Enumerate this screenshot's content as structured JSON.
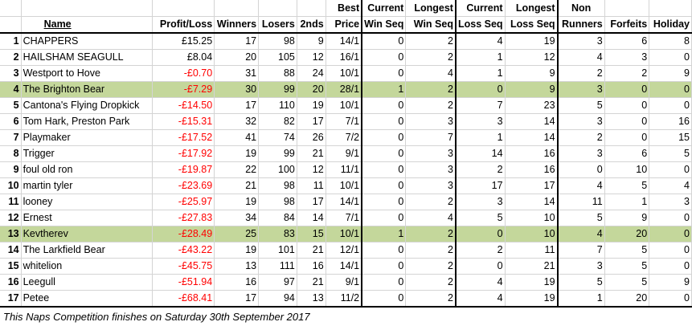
{
  "headers": {
    "name": "Name",
    "profit_loss": "Profit/Loss",
    "winners": "Winners",
    "losers": "Losers",
    "seconds": "2nds",
    "best_price": [
      "Best",
      "Price"
    ],
    "current_win_seq": [
      "Current",
      "Win Seq"
    ],
    "longest_win_seq": [
      "Longest",
      "Win Seq"
    ],
    "current_loss_seq": [
      "Current",
      "Loss Seq"
    ],
    "longest_loss_seq": [
      "Longest",
      "Loss Seq"
    ],
    "non_runners": [
      "Non",
      "Runners"
    ],
    "forfeits": "Forfeits",
    "holiday": "Holiday"
  },
  "rows": [
    {
      "pos": "1",
      "name": "CHAPPERS",
      "pl": "£15.25",
      "neg": false,
      "w": "17",
      "l": "98",
      "s": "9",
      "bp": "14/1",
      "cws": "0",
      "lws": "2",
      "cls": "4",
      "lls": "19",
      "nr": "3",
      "f": "6",
      "h": "8",
      "hl": false
    },
    {
      "pos": "2",
      "name": "HAILSHAM SEAGULL",
      "pl": "£8.04",
      "neg": false,
      "w": "20",
      "l": "105",
      "s": "12",
      "bp": "16/1",
      "cws": "0",
      "lws": "2",
      "cls": "1",
      "lls": "12",
      "nr": "4",
      "f": "3",
      "h": "0",
      "hl": false
    },
    {
      "pos": "3",
      "name": "Westport to Hove",
      "pl": "-£0.70",
      "neg": true,
      "w": "31",
      "l": "88",
      "s": "24",
      "bp": "10/1",
      "cws": "0",
      "lws": "4",
      "cls": "1",
      "lls": "9",
      "nr": "2",
      "f": "2",
      "h": "9",
      "hl": false
    },
    {
      "pos": "4",
      "name": "The Brighton Bear",
      "pl": "-£7.29",
      "neg": true,
      "w": "30",
      "l": "99",
      "s": "20",
      "bp": "28/1",
      "cws": "1",
      "lws": "2",
      "cls": "0",
      "lls": "9",
      "nr": "3",
      "f": "0",
      "h": "0",
      "hl": true
    },
    {
      "pos": "5",
      "name": "Cantona's Flying Dropkick",
      "pl": "-£14.50",
      "neg": true,
      "w": "17",
      "l": "110",
      "s": "19",
      "bp": "10/1",
      "cws": "0",
      "lws": "2",
      "cls": "7",
      "lls": "23",
      "nr": "5",
      "f": "0",
      "h": "0",
      "hl": false
    },
    {
      "pos": "6",
      "name": "Tom Hark, Preston Park",
      "pl": "-£15.31",
      "neg": true,
      "w": "32",
      "l": "82",
      "s": "17",
      "bp": "7/1",
      "cws": "0",
      "lws": "3",
      "cls": "3",
      "lls": "14",
      "nr": "3",
      "f": "0",
      "h": "16",
      "hl": false
    },
    {
      "pos": "7",
      "name": "Playmaker",
      "pl": "-£17.52",
      "neg": true,
      "w": "41",
      "l": "74",
      "s": "26",
      "bp": "7/2",
      "cws": "0",
      "lws": "7",
      "cls": "1",
      "lls": "14",
      "nr": "2",
      "f": "0",
      "h": "15",
      "hl": false
    },
    {
      "pos": "8",
      "name": "Trigger",
      "pl": "-£17.92",
      "neg": true,
      "w": "19",
      "l": "99",
      "s": "21",
      "bp": "9/1",
      "cws": "0",
      "lws": "3",
      "cls": "14",
      "lls": "16",
      "nr": "3",
      "f": "6",
      "h": "5",
      "hl": false
    },
    {
      "pos": "9",
      "name": "foul old ron",
      "pl": "-£19.87",
      "neg": true,
      "w": "22",
      "l": "100",
      "s": "12",
      "bp": "11/1",
      "cws": "0",
      "lws": "3",
      "cls": "2",
      "lls": "16",
      "nr": "0",
      "f": "10",
      "h": "0",
      "hl": false
    },
    {
      "pos": "10",
      "name": "martin tyler",
      "pl": "-£23.69",
      "neg": true,
      "w": "21",
      "l": "98",
      "s": "11",
      "bp": "10/1",
      "cws": "0",
      "lws": "3",
      "cls": "17",
      "lls": "17",
      "nr": "4",
      "f": "5",
      "h": "4",
      "hl": false
    },
    {
      "pos": "11",
      "name": "looney",
      "pl": "-£25.97",
      "neg": true,
      "w": "19",
      "l": "98",
      "s": "17",
      "bp": "14/1",
      "cws": "0",
      "lws": "2",
      "cls": "3",
      "lls": "14",
      "nr": "11",
      "f": "1",
      "h": "3",
      "hl": false
    },
    {
      "pos": "12",
      "name": "Ernest",
      "pl": "-£27.83",
      "neg": true,
      "w": "34",
      "l": "84",
      "s": "14",
      "bp": "7/1",
      "cws": "0",
      "lws": "4",
      "cls": "5",
      "lls": "10",
      "nr": "5",
      "f": "9",
      "h": "0",
      "hl": false
    },
    {
      "pos": "13",
      "name": "Kevtherev",
      "pl": "-£28.49",
      "neg": true,
      "w": "25",
      "l": "83",
      "s": "15",
      "bp": "10/1",
      "cws": "1",
      "lws": "2",
      "cls": "0",
      "lls": "10",
      "nr": "4",
      "f": "20",
      "h": "0",
      "hl": true
    },
    {
      "pos": "14",
      "name": "The Larkfield Bear",
      "pl": "-£43.22",
      "neg": true,
      "w": "19",
      "l": "101",
      "s": "21",
      "bp": "12/1",
      "cws": "0",
      "lws": "2",
      "cls": "2",
      "lls": "11",
      "nr": "7",
      "f": "5",
      "h": "0",
      "hl": false
    },
    {
      "pos": "15",
      "name": "whitelion",
      "pl": "-£45.75",
      "neg": true,
      "w": "13",
      "l": "111",
      "s": "16",
      "bp": "14/1",
      "cws": "0",
      "lws": "2",
      "cls": "0",
      "lls": "21",
      "nr": "3",
      "f": "5",
      "h": "0",
      "hl": false
    },
    {
      "pos": "16",
      "name": "Leegull",
      "pl": "-£51.94",
      "neg": true,
      "w": "16",
      "l": "97",
      "s": "21",
      "bp": "9/1",
      "cws": "0",
      "lws": "2",
      "cls": "4",
      "lls": "19",
      "nr": "5",
      "f": "5",
      "h": "9",
      "hl": false
    },
    {
      "pos": "17",
      "name": "Petee",
      "pl": "-£68.41",
      "neg": true,
      "w": "17",
      "l": "94",
      "s": "13",
      "bp": "11/2",
      "cws": "0",
      "lws": "2",
      "cls": "4",
      "lls": "19",
      "nr": "1",
      "f": "20",
      "h": "0",
      "hl": false
    }
  ],
  "footer": "This Naps Competition finishes on Saturday 30th September 2017",
  "colors": {
    "highlight": "#c4d79b",
    "negative": "#ff0000"
  }
}
